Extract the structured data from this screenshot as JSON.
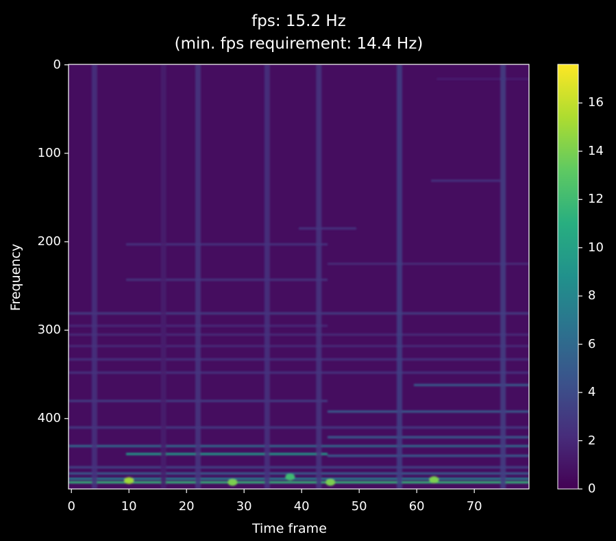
{
  "chart_data": {
    "type": "heatmap",
    "title": "fps: 15.2 Hz",
    "subtitle": "(min. fps requirement: 14.4 Hz)",
    "xlabel": "Time frame",
    "ylabel": "Frequency",
    "xlim": [
      -0.5,
      79.5
    ],
    "ylim": [
      479.5,
      -0.5
    ],
    "xticks": [
      0,
      10,
      20,
      30,
      40,
      50,
      60,
      70
    ],
    "yticks": [
      0,
      100,
      200,
      300,
      400
    ],
    "colormap": "viridis",
    "colorbar": {
      "min": 0,
      "max": 17.6,
      "ticks": [
        0,
        2,
        4,
        6,
        8,
        10,
        12,
        14,
        16
      ]
    },
    "background_level": 0.6,
    "colors": {
      "background": "#000000",
      "text": "#ffffff",
      "axis": "#ffffff"
    },
    "vertical_bands": [
      {
        "x": 4,
        "level": 2.6
      },
      {
        "x": 16,
        "level": 1.4
      },
      {
        "x": 22,
        "level": 2.8
      },
      {
        "x": 34,
        "level": 2.6
      },
      {
        "x": 43,
        "level": 2.8
      },
      {
        "x": 57,
        "level": 3.4
      },
      {
        "x": 75,
        "level": 3.2
      }
    ],
    "horizontal_lines": [
      {
        "y": 472,
        "x0": 0,
        "x1": 80,
        "level": 11.5
      },
      {
        "y": 468,
        "x0": 0,
        "x1": 80,
        "level": 7.5
      },
      {
        "y": 462,
        "x0": 0,
        "x1": 80,
        "level": 5.0
      },
      {
        "y": 455,
        "x0": 0,
        "x1": 80,
        "level": 3.5
      },
      {
        "y": 440,
        "x0": 10,
        "x1": 45,
        "level": 9.5
      },
      {
        "y": 442,
        "x0": 45,
        "x1": 80,
        "level": 5.0
      },
      {
        "y": 431,
        "x0": 0,
        "x1": 80,
        "level": 6.0
      },
      {
        "y": 421,
        "x0": 45,
        "x1": 80,
        "level": 5.0
      },
      {
        "y": 410,
        "x0": 0,
        "x1": 80,
        "level": 3.0
      },
      {
        "y": 392,
        "x0": 45,
        "x1": 80,
        "level": 5.0
      },
      {
        "y": 380,
        "x0": 0,
        "x1": 45,
        "level": 3.0
      },
      {
        "y": 362,
        "x0": 60,
        "x1": 80,
        "level": 5.0
      },
      {
        "y": 348,
        "x0": 0,
        "x1": 80,
        "level": 2.5
      },
      {
        "y": 333,
        "x0": 0,
        "x1": 80,
        "level": 2.5
      },
      {
        "y": 318,
        "x0": 0,
        "x1": 80,
        "level": 2.0
      },
      {
        "y": 305,
        "x0": 0,
        "x1": 80,
        "level": 2.0
      },
      {
        "y": 295,
        "x0": 0,
        "x1": 45,
        "level": 2.0
      },
      {
        "y": 281,
        "x0": 0,
        "x1": 80,
        "level": 3.0
      },
      {
        "y": 243,
        "x0": 10,
        "x1": 45,
        "level": 2.5
      },
      {
        "y": 225,
        "x0": 45,
        "x1": 80,
        "level": 2.0
      },
      {
        "y": 203,
        "x0": 10,
        "x1": 45,
        "level": 2.5
      },
      {
        "y": 185,
        "x0": 40,
        "x1": 50,
        "level": 2.5
      },
      {
        "y": 131,
        "x0": 63,
        "x1": 75,
        "level": 2.5
      },
      {
        "y": 16,
        "x0": 64,
        "x1": 80,
        "level": 1.5
      }
    ],
    "hot_spots": [
      {
        "x": 10,
        "y": 470,
        "level": 15.0
      },
      {
        "x": 28,
        "y": 472,
        "level": 14.0
      },
      {
        "x": 38,
        "y": 466,
        "level": 12.0
      },
      {
        "x": 45,
        "y": 472,
        "level": 14.0
      },
      {
        "x": 63,
        "y": 469,
        "level": 14.0
      }
    ]
  }
}
